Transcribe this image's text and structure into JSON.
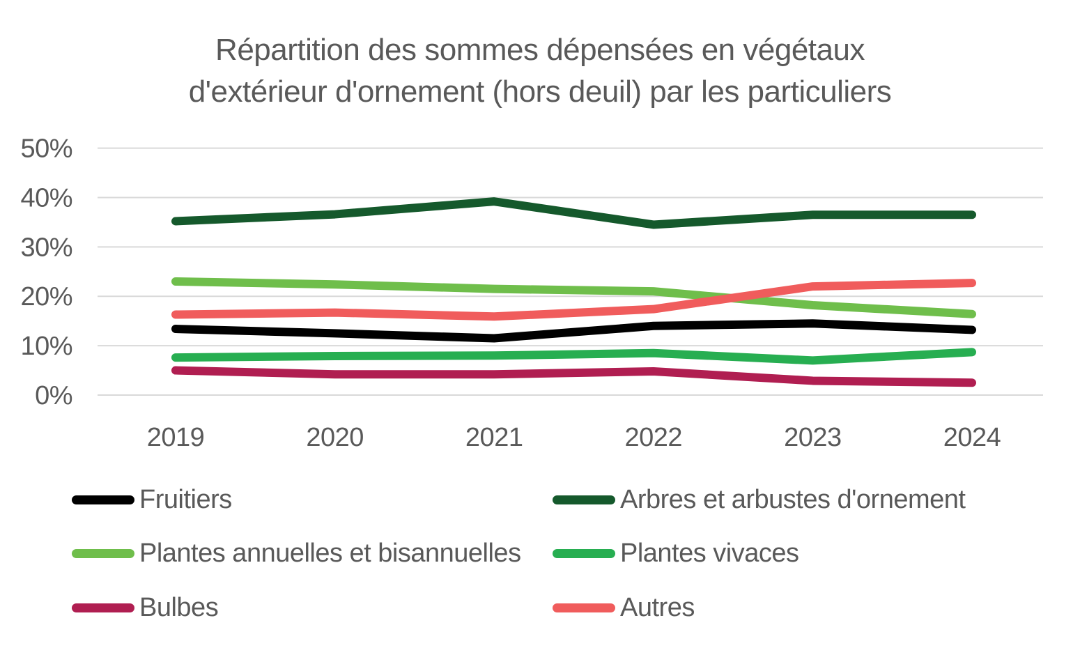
{
  "title": {
    "line1": "Répartition des sommes dépensées en végétaux",
    "line2": "d'extérieur d'ornement (hors deuil) par les particuliers"
  },
  "colors": {
    "background": "#FFFFFF",
    "text": "#595959",
    "gridline": "#D9D9D9"
  },
  "chart_data": {
    "type": "line",
    "title": "Répartition des sommes dépensées en végétaux d'extérieur d'ornement (hors deuil) par les particuliers",
    "x": [
      "2019",
      "2020",
      "2021",
      "2022",
      "2023",
      "2024"
    ],
    "xlabel": "",
    "ylabel": "",
    "unit": "%",
    "ylim": [
      0,
      50
    ],
    "y_tick_step": 10,
    "y_tick_labels": [
      "50%",
      "40%",
      "30%",
      "20%",
      "10%",
      "0%"
    ],
    "grid": true,
    "legend_position": "bottom, two columns",
    "series": [
      {
        "name": "Fruitiers",
        "color": "#000000",
        "values": [
          13.4,
          12.5,
          11.5,
          14.0,
          14.5,
          13.2
        ],
        "legend_column": 0,
        "legend_row": 0
      },
      {
        "name": "Arbres et arbustes d'ornement",
        "color": "#15592C",
        "values": [
          35.2,
          36.6,
          39.2,
          34.5,
          36.5,
          36.5
        ],
        "legend_column": 1,
        "legend_row": 0
      },
      {
        "name": "Plantes annuelles et bisannuelles",
        "color": "#6FBE4B",
        "values": [
          23.0,
          22.4,
          21.5,
          21.0,
          18.2,
          16.4
        ],
        "legend_column": 0,
        "legend_row": 1
      },
      {
        "name": "Plantes vivaces",
        "color": "#27AE51",
        "values": [
          7.6,
          7.9,
          8.0,
          8.5,
          7.0,
          8.7
        ],
        "legend_column": 1,
        "legend_row": 1
      },
      {
        "name": "Bulbes",
        "color": "#B01E51",
        "values": [
          5.0,
          4.2,
          4.2,
          4.8,
          2.9,
          2.5
        ],
        "legend_column": 0,
        "legend_row": 2
      },
      {
        "name": "Autres",
        "color": "#F05C5C",
        "values": [
          16.3,
          16.7,
          15.9,
          17.4,
          22.0,
          22.7
        ],
        "legend_column": 1,
        "legend_row": 2
      }
    ]
  }
}
